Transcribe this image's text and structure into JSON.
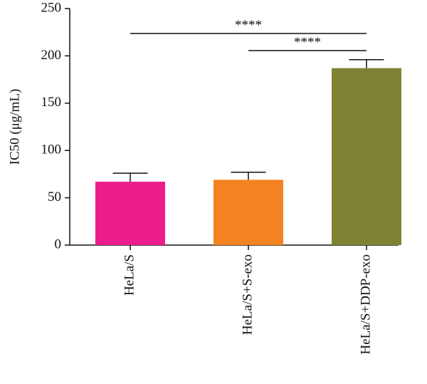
{
  "chart_data": {
    "type": "bar",
    "y_label": "IC50 (μg/mL)",
    "categories": [
      "HeLa/S",
      "HeLa/S+S-exo",
      "HeLa/S+DDP-exo"
    ],
    "values": [
      67,
      69,
      187
    ],
    "errors": [
      9,
      8,
      9
    ],
    "colors": [
      "#ec1c8c",
      "#f58220",
      "#7f8133"
    ],
    "ylim": [
      0,
      250
    ],
    "yticks": [
      0,
      50,
      100,
      150,
      200,
      250
    ],
    "comparisons": [
      {
        "pair": [
          0,
          2
        ],
        "label": "****"
      },
      {
        "pair": [
          1,
          2
        ],
        "label": "****"
      }
    ]
  }
}
